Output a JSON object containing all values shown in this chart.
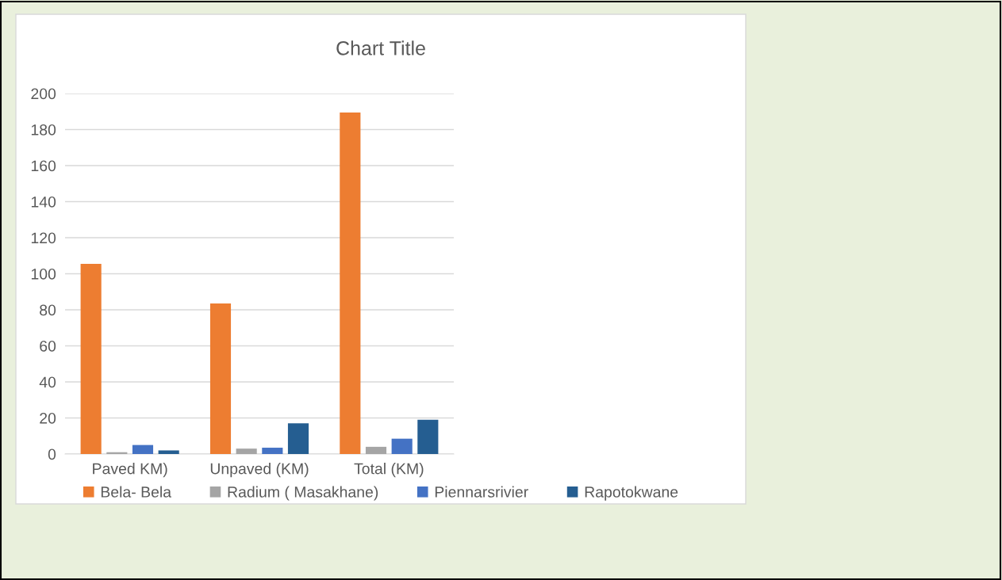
{
  "chart_data": {
    "type": "bar",
    "title": "Chart Title",
    "categories": [
      "Paved KM)",
      "Unpaved (KM)",
      "Total (KM)"
    ],
    "series": [
      {
        "name": "Bela- Bela",
        "color": "#ed7d31",
        "values": [
          105.5,
          83.5,
          189.5
        ]
      },
      {
        "name": "Radium ( Masakhane)",
        "color": "#a5a5a5",
        "values": [
          1,
          3,
          4
        ]
      },
      {
        "name": "Piennarsrivier",
        "color": "#4472c4",
        "values": [
          5,
          3.5,
          8.5
        ]
      },
      {
        "name": "Rapotokwane",
        "color": "#255e91",
        "values": [
          2,
          17,
          19
        ]
      }
    ],
    "ylim": [
      0,
      200
    ],
    "yticks": [
      0,
      20,
      40,
      60,
      80,
      100,
      120,
      140,
      160,
      180,
      200
    ],
    "grid": "y",
    "legend": "bottom"
  }
}
